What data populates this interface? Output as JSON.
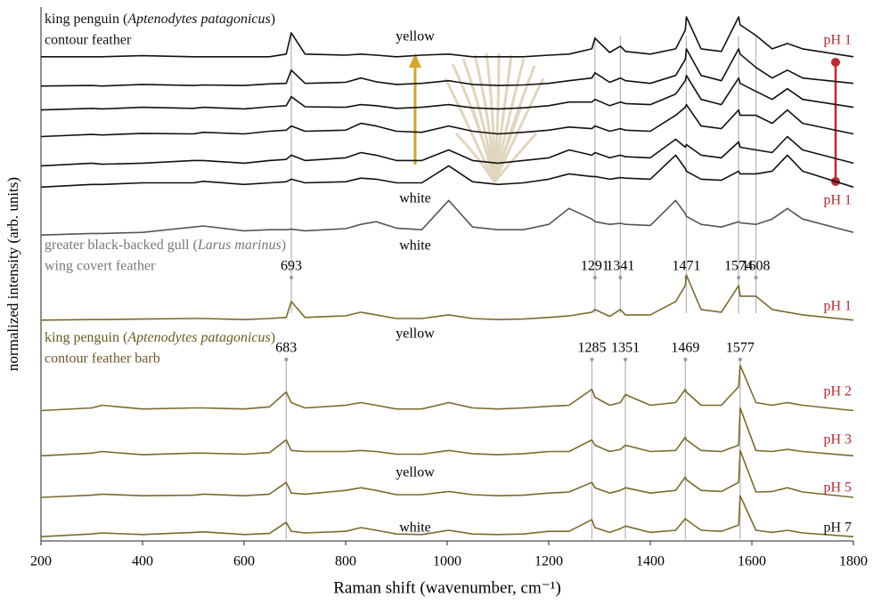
{
  "chart_data": {
    "type": "line",
    "x_label": "Raman shift (wavenumber, cm⁻¹)",
    "y_label": "normalized intensity (arb. units)",
    "xlim": [
      200,
      1800
    ],
    "xticks": [
      200,
      400,
      600,
      800,
      1000,
      1200,
      1400,
      1600,
      1800
    ],
    "ylim": [
      0,
      100
    ],
    "x": [
      200,
      300,
      320,
      400,
      500,
      520,
      600,
      650,
      683,
      693,
      720,
      800,
      830,
      860,
      900,
      950,
      1003,
      1050,
      1100,
      1150,
      1200,
      1240,
      1285,
      1291,
      1320,
      1341,
      1351,
      1400,
      1450,
      1469,
      1471,
      1500,
      1540,
      1574,
      1577,
      1608,
      1640,
      1670,
      1700,
      1800
    ],
    "series": [
      {
        "color": "#111111",
        "values": [
          91,
          91,
          91,
          91.2,
          91,
          91,
          91,
          91,
          91.5,
          95.5,
          91.5,
          91.3,
          91.5,
          91.3,
          91,
          91.3,
          91.5,
          91,
          91,
          91,
          91.3,
          91.5,
          92.5,
          94.5,
          91.8,
          93,
          92,
          91.5,
          92.5,
          96,
          98.5,
          92.5,
          92,
          98.5,
          97,
          95,
          92.5,
          93.5,
          92.5,
          91
        ]
      },
      {
        "color": "#111111",
        "values": [
          85.5,
          85.6,
          85.5,
          85.8,
          85.6,
          85.7,
          85.6,
          85.9,
          86,
          88.5,
          86,
          86.2,
          87,
          86.3,
          85.8,
          86,
          86.5,
          85.8,
          85.6,
          85.7,
          86,
          86.5,
          87,
          88,
          86.2,
          87,
          86.5,
          86,
          87.5,
          90.5,
          92.5,
          87.5,
          86.5,
          92.5,
          91.5,
          89,
          87,
          88.5,
          87,
          86
        ]
      },
      {
        "color": "#111111",
        "values": [
          81,
          81.3,
          81.2,
          81.5,
          81.3,
          81.5,
          81.2,
          81.6,
          81.8,
          83.5,
          81.6,
          81.5,
          82,
          81.8,
          81.3,
          81.5,
          82,
          81.4,
          81.2,
          81.4,
          81.8,
          82.5,
          82.5,
          83,
          81.8,
          82.5,
          82.2,
          82,
          84,
          86.5,
          87.5,
          83,
          82,
          87,
          86,
          84.5,
          83,
          85,
          83,
          81.5
        ]
      },
      {
        "color": "#111111",
        "values": [
          76,
          76.4,
          76.3,
          76.6,
          76.5,
          76.8,
          76.5,
          77,
          77.2,
          78,
          77,
          77.2,
          78.5,
          78,
          77,
          76.8,
          78,
          77,
          76.5,
          76.8,
          77.2,
          77.8,
          77.5,
          78,
          77,
          77.5,
          77.2,
          77,
          80,
          81.5,
          82,
          78,
          77.5,
          81,
          80,
          80,
          78.5,
          81,
          78.5,
          76.5
        ]
      },
      {
        "color": "#111111",
        "values": [
          70.5,
          71,
          70.8,
          71,
          71.5,
          71.5,
          71,
          71.5,
          71.7,
          72.5,
          71.5,
          72,
          73,
          72.5,
          71.5,
          71.5,
          73.5,
          71.5,
          71,
          71.5,
          72,
          73.5,
          72.5,
          73,
          72,
          72.5,
          72.2,
          72,
          75.5,
          74,
          74.5,
          72.5,
          72,
          75,
          74,
          73.5,
          73,
          76,
          73.5,
          71
        ]
      },
      {
        "color": "#111111",
        "values": [
          66.5,
          67,
          67,
          67.3,
          67.3,
          67.6,
          67,
          67.3,
          67.5,
          68,
          67.3,
          67.5,
          68.2,
          68,
          67.3,
          67.3,
          70.5,
          67.5,
          67,
          67.3,
          68,
          69,
          68.5,
          68.5,
          68,
          68.3,
          68.2,
          68,
          72.5,
          70,
          69.5,
          68,
          67.8,
          69.5,
          69,
          69,
          69.5,
          72.5,
          69.5,
          66.5
        ]
      },
      {
        "color": "#555555",
        "values": [
          57.5,
          57.8,
          57.8,
          58,
          59,
          59.2,
          58.3,
          58.5,
          58.5,
          58.6,
          58.3,
          58.7,
          59.5,
          60,
          58.8,
          58.5,
          64,
          59,
          58.5,
          58.5,
          59.5,
          62.5,
          60.5,
          60,
          59.5,
          59.7,
          59.5,
          59.3,
          64,
          61.5,
          61,
          59.5,
          59,
          60,
          59.8,
          59.5,
          60.5,
          62.5,
          60.5,
          58
        ]
      },
      {
        "color": "#7a6a2a",
        "values": [
          41.5,
          41.6,
          41.6,
          41.7,
          41.8,
          41.8,
          41.6,
          41.8,
          42,
          45,
          42,
          42.3,
          43,
          42.5,
          41.8,
          41.8,
          42.5,
          41.8,
          41.6,
          41.7,
          42,
          42.3,
          43,
          43.5,
          42.2,
          43.5,
          42.5,
          42.5,
          45,
          48,
          50,
          43.5,
          43,
          48,
          46,
          46,
          43.5,
          43,
          42.5,
          41.5
        ]
      },
      {
        "color": "#7a6a2a",
        "values": [
          24.5,
          25,
          25.5,
          24.8,
          25,
          25,
          24.8,
          25.2,
          28,
          26,
          25,
          25.5,
          26,
          25.5,
          24.8,
          24.8,
          26,
          25,
          24.8,
          25,
          25.3,
          25.5,
          28.5,
          27,
          25.5,
          26,
          27.5,
          25.5,
          26,
          28.5,
          28,
          25.5,
          25.5,
          29,
          33,
          26,
          25.5,
          26,
          25.5,
          24.5
        ]
      },
      {
        "color": "#7a6a2a",
        "values": [
          16,
          16.5,
          16.8,
          16.2,
          16.5,
          16.5,
          16.3,
          16.6,
          19,
          17,
          16.8,
          16.8,
          17,
          16.8,
          16.3,
          16.3,
          17,
          16.4,
          16.2,
          16.4,
          16.8,
          16.8,
          19,
          18,
          16.8,
          17.2,
          18,
          16.8,
          17,
          19.5,
          19,
          17,
          16.8,
          18,
          25,
          17,
          16.8,
          17.2,
          16.8,
          16
        ]
      },
      {
        "color": "#7a6a2a",
        "values": [
          8.2,
          8.6,
          8.8,
          8.5,
          8.6,
          8.8,
          8.5,
          8.8,
          11,
          9,
          8.8,
          9.5,
          10,
          9.5,
          8.7,
          8.7,
          9.3,
          8.7,
          8.5,
          8.6,
          9,
          9.2,
          11,
          10,
          9,
          9.5,
          10,
          9,
          9.5,
          12,
          11.5,
          9.5,
          9.3,
          11,
          17,
          9.2,
          9.3,
          10,
          9.2,
          8.2
        ]
      },
      {
        "color": "#7a6a2a",
        "values": [
          0.8,
          1.3,
          1.5,
          1.2,
          1.6,
          1.7,
          1.2,
          1.4,
          3.5,
          1.8,
          1.5,
          1.8,
          2.5,
          2,
          1.3,
          1.2,
          2,
          1.3,
          1.2,
          1.3,
          1.8,
          1.8,
          4,
          2.5,
          1.6,
          2.3,
          2.8,
          1.6,
          2,
          4.2,
          4,
          2,
          1.8,
          3,
          8.5,
          2,
          1.6,
          2,
          1.5,
          0.8
        ]
      }
    ],
    "species_labels": [
      {
        "color": "#111111",
        "name": [
          "king penguin (",
          "Aptenodytes patagonicus",
          ")"
        ],
        "part": "contour feather"
      },
      {
        "color": "#777777",
        "name": [
          "greater black-backed gull (",
          "Larus marinus",
          ")"
        ],
        "part": "wing covert feather"
      },
      {
        "color": "#6b5a22",
        "name": [
          "king penguin (",
          "Aptenodytes patagonicus",
          ")"
        ],
        "part": "contour feather barb"
      }
    ],
    "peak_groups": [
      {
        "peaks": [
          693,
          1291,
          1341,
          1471,
          1574,
          1608
        ]
      },
      {
        "peaks": [
          683,
          1285,
          1351,
          1469,
          1577
        ]
      }
    ],
    "ph_labels": [
      {
        "text": "pH 1",
        "color": "#c0272d"
      },
      {
        "text": "pH 1",
        "color": "#c0272d"
      },
      {
        "text": "pH 1",
        "color": "#c0272d"
      },
      {
        "text": "pH 2",
        "color": "#c0272d"
      },
      {
        "text": "pH 3",
        "color": "#c0272d"
      },
      {
        "text": "pH 5",
        "color": "#c0272d"
      },
      {
        "text": "pH 7",
        "color": "#111111"
      }
    ],
    "annotations": [
      "yellow",
      "white",
      "white",
      "yellow",
      "yellow",
      "white"
    ]
  }
}
